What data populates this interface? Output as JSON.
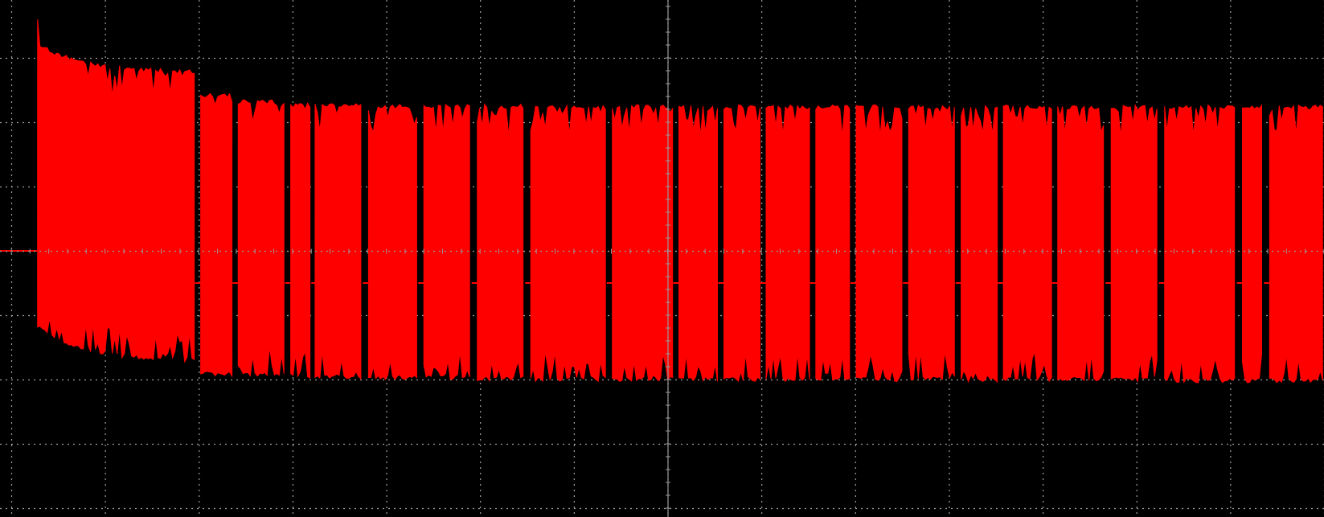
{
  "chart_data": {
    "type": "line",
    "title": "",
    "xlabel": "",
    "ylabel": "",
    "grid": true,
    "x_divisions": 14,
    "y_divisions": 8,
    "xlim": [
      -7,
      7
    ],
    "ylim": [
      -4,
      4
    ],
    "trace_color": "#ff0000",
    "grid_color": "#a0a0a0",
    "background_color": "#000000",
    "baseline_level": 0,
    "burst_start_x": -6.72,
    "bursts": [
      {
        "x_start": -6.72,
        "x_end": -5.04,
        "upper": 3.05,
        "lower": -1.75,
        "peak": 3.6
      },
      {
        "x_start": -4.98,
        "x_end": -4.64,
        "upper": 2.45,
        "lower": -1.95
      },
      {
        "x_start": -4.58,
        "x_end": -4.08,
        "upper": 2.35,
        "lower": -1.95
      },
      {
        "x_start": -4.02,
        "x_end": -3.8,
        "upper": 2.3,
        "lower": -1.98
      },
      {
        "x_start": -3.76,
        "x_end": -3.25,
        "upper": 2.3,
        "lower": -2.0
      },
      {
        "x_start": -3.19,
        "x_end": -2.66,
        "upper": 2.28,
        "lower": -2.0
      },
      {
        "x_start": -2.6,
        "x_end": -2.09,
        "upper": 2.28,
        "lower": -2.0
      },
      {
        "x_start": -2.03,
        "x_end": -1.52,
        "upper": 2.28,
        "lower": -2.02
      },
      {
        "x_start": -1.46,
        "x_end": -0.65,
        "upper": 2.27,
        "lower": -2.03
      },
      {
        "x_start": -0.59,
        "x_end": 0.06,
        "upper": 2.27,
        "lower": -2.03
      },
      {
        "x_start": 0.12,
        "x_end": 0.54,
        "upper": 2.27,
        "lower": -2.03
      },
      {
        "x_start": 0.6,
        "x_end": 0.99,
        "upper": 2.27,
        "lower": -2.03
      },
      {
        "x_start": 1.05,
        "x_end": 1.52,
        "upper": 2.27,
        "lower": -2.03
      },
      {
        "x_start": 1.58,
        "x_end": 1.95,
        "upper": 2.27,
        "lower": -2.03
      },
      {
        "x_start": 2.01,
        "x_end": 2.51,
        "upper": 2.27,
        "lower": -2.03
      },
      {
        "x_start": 2.57,
        "x_end": 3.07,
        "upper": 2.27,
        "lower": -2.03
      },
      {
        "x_start": 3.13,
        "x_end": 3.52,
        "upper": 2.27,
        "lower": -2.05
      },
      {
        "x_start": 3.58,
        "x_end": 4.1,
        "upper": 2.27,
        "lower": -2.03
      },
      {
        "x_start": 4.16,
        "x_end": 4.67,
        "upper": 2.27,
        "lower": -2.03
      },
      {
        "x_start": 4.73,
        "x_end": 5.24,
        "upper": 2.27,
        "lower": -2.03
      },
      {
        "x_start": 5.3,
        "x_end": 6.07,
        "upper": 2.27,
        "lower": -2.05
      },
      {
        "x_start": 6.13,
        "x_end": 6.36,
        "upper": 2.27,
        "lower": -2.05
      },
      {
        "x_start": 6.42,
        "x_end": 7.0,
        "upper": 2.27,
        "lower": -2.05
      }
    ]
  }
}
